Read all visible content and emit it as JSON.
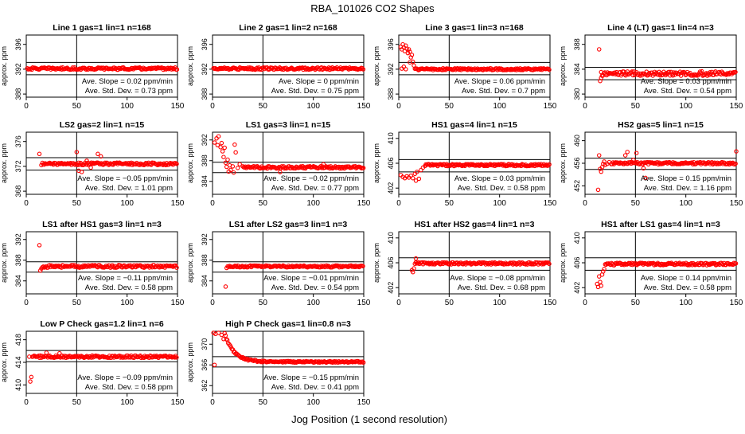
{
  "figure": {
    "title": "RBA_101026  CO2 Shapes",
    "xlabel": "Jog Position (1 second resolution)"
  },
  "chart_data": [
    {
      "type": "scatter",
      "title": "Line 1 gas=1 lin=1 n=168",
      "ylabel": "approx. ppm",
      "xlim": [
        0,
        150
      ],
      "ylim": [
        387.5,
        397.5
      ],
      "xticks": [
        0,
        50,
        100,
        150
      ],
      "yticks": [
        388,
        392,
        396
      ],
      "vline": 50,
      "hlines": [
        393.1,
        391.1
      ],
      "baseline": 392.1,
      "noise": 0.18,
      "x_start": 1,
      "early": [],
      "outliers": [],
      "series": [
        {
          "color": "#ff0000"
        }
      ],
      "annotation": {
        "slope_label": "Ave. Slope =",
        "slope_value": "0.02",
        "slope_unit": "ppm/min",
        "std_label": "Ave. Std. Dev. =",
        "std_value": "0.73",
        "std_unit": "ppm"
      }
    },
    {
      "type": "scatter",
      "title": "Line 2 gas=1 lin=2 n=168",
      "ylabel": "approx. ppm",
      "xlim": [
        0,
        150
      ],
      "ylim": [
        387.5,
        397.5
      ],
      "xticks": [
        0,
        50,
        100,
        150
      ],
      "yticks": [
        388,
        392,
        396
      ],
      "vline": 50,
      "hlines": [
        393.1,
        391.1
      ],
      "baseline": 392.1,
      "noise": 0.18,
      "x_start": 1,
      "early": [],
      "outliers": [],
      "series": [
        {
          "color": "#ff0000"
        }
      ],
      "annotation": {
        "slope_label": "Ave. Slope =",
        "slope_value": "0",
        "slope_unit": "ppm/min",
        "std_label": "Ave. Std. Dev. =",
        "std_value": "0.75",
        "std_unit": "ppm"
      }
    },
    {
      "type": "scatter",
      "title": "Line 3 gas=1 lin=3 n=168",
      "ylabel": "approx. ppm",
      "xlim": [
        0,
        150
      ],
      "ylim": [
        387.5,
        397.5
      ],
      "xticks": [
        0,
        50,
        100,
        150
      ],
      "yticks": [
        388,
        392,
        396
      ],
      "vline": 50,
      "hlines": [
        393.1,
        391.1
      ],
      "baseline": 392.0,
      "noise": 0.15,
      "x_start": 16,
      "early": [
        [
          2,
          395.6
        ],
        [
          3,
          395.2
        ],
        [
          4,
          396.0
        ],
        [
          5,
          395.5
        ],
        [
          6,
          394.9
        ],
        [
          7,
          395.8
        ],
        [
          8,
          395.3
        ],
        [
          9,
          394.6
        ],
        [
          10,
          395.2
        ],
        [
          11,
          394.8
        ],
        [
          12,
          393.9
        ],
        [
          13,
          394.3
        ],
        [
          14,
          393.2
        ],
        [
          15,
          392.6
        ],
        [
          3,
          392.1
        ],
        [
          5,
          392.4
        ],
        [
          7,
          392.0
        ],
        [
          11,
          393.1
        ]
      ],
      "outliers": [],
      "series": [
        {
          "color": "#ff0000"
        }
      ],
      "annotation": {
        "slope_label": "Ave. Slope =",
        "slope_value": "0.06",
        "slope_unit": "ppm/min",
        "std_label": "Ave. Std. Dev. =",
        "std_value": "0.7",
        "std_unit": "ppm"
      }
    },
    {
      "type": "scatter",
      "title": "Line 4 (LT) gas=1 lin=4 n=3",
      "ylabel": "approx. ppm",
      "xlim": [
        0,
        150
      ],
      "ylim": [
        379.5,
        389.5
      ],
      "xticks": [
        0,
        50,
        100,
        150
      ],
      "yticks": [
        380,
        384,
        388
      ],
      "vline": 50,
      "hlines": [
        384.3,
        382.3
      ],
      "baseline": 383.3,
      "noise": 0.35,
      "x_start": 16,
      "early": [
        [
          14,
          387.2
        ],
        [
          15,
          382.1
        ],
        [
          16,
          382.6
        ]
      ],
      "outliers": [],
      "series": [
        {
          "color": "#ff0000"
        }
      ],
      "annotation": {
        "slope_label": "Ave. Slope =",
        "slope_value": "0.03",
        "slope_unit": "ppm/min",
        "std_label": "Ave. Std. Dev. =",
        "std_value": "0.54",
        "std_unit": "ppm"
      }
    },
    {
      "type": "scatter",
      "title": "LS2 gas=2 lin=1 n=15",
      "ylabel": "approx. ppm",
      "xlim": [
        0,
        150
      ],
      "ylim": [
        367.5,
        377.5
      ],
      "xticks": [
        0,
        50,
        100,
        150
      ],
      "yticks": [
        368,
        372,
        376
      ],
      "vline": 50,
      "hlines": [
        373.4,
        371.4
      ],
      "baseline": 372.4,
      "noise": 0.2,
      "x_start": 16,
      "early": [
        [
          13,
          374.0
        ],
        [
          15,
          372.2
        ]
      ],
      "outliers": [
        [
          50,
          374.3
        ],
        [
          52,
          371.3
        ],
        [
          55,
          371.1
        ],
        [
          60,
          372.9
        ],
        [
          71,
          374.0
        ],
        [
          74,
          373.6
        ],
        [
          64,
          371.8
        ]
      ],
      "series": [
        {
          "color": "#ff0000"
        }
      ],
      "annotation": {
        "slope_label": "Ave. Slope =",
        "slope_value": "−0.05",
        "slope_unit": "ppm/min",
        "std_label": "Ave. Std. Dev. =",
        "std_value": "1.01",
        "std_unit": "ppm"
      }
    },
    {
      "type": "scatter",
      "title": "LS1 gas=3 lin=1 n=15",
      "ylabel": "approx. ppm",
      "xlim": [
        0,
        150
      ],
      "ylim": [
        381.5,
        393.5
      ],
      "xticks": [
        0,
        50,
        100,
        150
      ],
      "yticks": [
        384,
        388,
        392
      ],
      "vline": 50,
      "hlines": [
        387.7,
        385.7
      ],
      "baseline": 386.7,
      "noise": 0.22,
      "x_start": 30,
      "early": [
        [
          2,
          391.5
        ],
        [
          4,
          392.3
        ],
        [
          5,
          391.0
        ],
        [
          6,
          392.7
        ],
        [
          8,
          390.6
        ],
        [
          9,
          391.4
        ],
        [
          10,
          389.8
        ],
        [
          11,
          388.7
        ],
        [
          12,
          390.5
        ],
        [
          13,
          387.6
        ],
        [
          14,
          386.8
        ],
        [
          15,
          388.2
        ],
        [
          16,
          385.9
        ],
        [
          17,
          387.1
        ],
        [
          18,
          386.2
        ],
        [
          20,
          386.9
        ],
        [
          21,
          385.7
        ],
        [
          22,
          391.1
        ],
        [
          23,
          389.6
        ],
        [
          25,
          386.6
        ],
        [
          27,
          387.3
        ]
      ],
      "outliers": [
        [
          67,
          385.8
        ],
        [
          110,
          387.3
        ]
      ],
      "series": [
        {
          "color": "#ff0000"
        }
      ],
      "annotation": {
        "slope_label": "Ave. Slope =",
        "slope_value": "−0.02",
        "slope_unit": "ppm/min",
        "std_label": "Ave. Std. Dev. =",
        "std_value": "0.77",
        "std_unit": "ppm"
      }
    },
    {
      "type": "scatter",
      "title": "HS1 gas=4 lin=1 n=15",
      "ylabel": "approx. ppm",
      "xlim": [
        0,
        150
      ],
      "ylim": [
        401,
        411
      ],
      "xticks": [
        0,
        50,
        100,
        150
      ],
      "yticks": [
        402,
        406,
        410
      ],
      "vline": 50,
      "hlines": [
        406.6,
        404.6
      ],
      "baseline": 405.7,
      "noise": 0.16,
      "x_start": 26,
      "early": [
        [
          2,
          404.1
        ],
        [
          4,
          403.8
        ],
        [
          6,
          403.6
        ],
        [
          8,
          403.9
        ],
        [
          10,
          403.7
        ],
        [
          12,
          404.0
        ],
        [
          14,
          403.6
        ],
        [
          16,
          404.3
        ],
        [
          17,
          403.2
        ],
        [
          18,
          404.6
        ],
        [
          20,
          403.5
        ],
        [
          22,
          404.9
        ],
        [
          24,
          405.3
        ]
      ],
      "outliers": [],
      "series": [
        {
          "color": "#ff0000"
        }
      ],
      "annotation": {
        "slope_label": "Ave. Slope =",
        "slope_value": "0.03",
        "slope_unit": "ppm/min",
        "std_label": "Ave. Std. Dev. =",
        "std_value": "0.58",
        "std_unit": "ppm"
      }
    },
    {
      "type": "scatter",
      "title": "HS2 gas=5 lin=1 n=15",
      "ylabel": "approx. ppm",
      "xlim": [
        0,
        150
      ],
      "ylim": [
        450.5,
        461.5
      ],
      "xticks": [
        0,
        50,
        100,
        150
      ],
      "yticks": [
        452,
        456,
        460
      ],
      "vline": 50,
      "hlines": [
        456.9,
        454.9
      ],
      "baseline": 456.0,
      "noise": 0.2,
      "x_start": 26,
      "early": [
        [
          13,
          451.3
        ],
        [
          14,
          457.4
        ],
        [
          15,
          455.0
        ],
        [
          16,
          454.5
        ],
        [
          17,
          455.3
        ],
        [
          18,
          455.9
        ],
        [
          19,
          456.3
        ],
        [
          20,
          455.7
        ],
        [
          22,
          455.9
        ],
        [
          24,
          456.2
        ]
      ],
      "outliers": [
        [
          40,
          457.4
        ],
        [
          42,
          458.0
        ],
        [
          48,
          456.6
        ],
        [
          51,
          457.8
        ],
        [
          58,
          455.1
        ],
        [
          60,
          453.4
        ],
        [
          150,
          458.1
        ]
      ],
      "series": [
        {
          "color": "#ff0000"
        }
      ],
      "annotation": {
        "slope_label": "Ave. Slope =",
        "slope_value": "0.15",
        "slope_unit": "ppm/min",
        "std_label": "Ave. Std. Dev. =",
        "std_value": "1.16",
        "std_unit": "ppm"
      }
    },
    {
      "type": "scatter",
      "title": "LS1 after HS1 gas=3 lin=1 n=3",
      "ylabel": "approx. ppm",
      "xlim": [
        0,
        150
      ],
      "ylim": [
        381.5,
        393.5
      ],
      "xticks": [
        0,
        50,
        100,
        150
      ],
      "yticks": [
        384,
        388,
        392
      ],
      "vline": 50,
      "hlines": [
        387.7,
        385.7
      ],
      "baseline": 386.8,
      "noise": 0.25,
      "x_start": 16,
      "early": [
        [
          13,
          390.9
        ],
        [
          14,
          386.0
        ],
        [
          15,
          386.4
        ]
      ],
      "outliers": [],
      "series": [
        {
          "color": "#ff0000"
        }
      ],
      "annotation": {
        "slope_label": "Ave. Slope =",
        "slope_value": "−0.11",
        "slope_unit": "ppm/min",
        "std_label": "Ave. Std. Dev. =",
        "std_value": "0.58",
        "std_unit": "ppm"
      }
    },
    {
      "type": "scatter",
      "title": "LS1 after LS2 gas=3 lin=1 n=3",
      "ylabel": "approx. ppm",
      "xlim": [
        0,
        150
      ],
      "ylim": [
        381.5,
        393.5
      ],
      "xticks": [
        0,
        50,
        100,
        150
      ],
      "yticks": [
        384,
        388,
        392
      ],
      "vline": 50,
      "hlines": [
        387.7,
        385.7
      ],
      "baseline": 386.8,
      "noise": 0.18,
      "x_start": 16,
      "early": [
        [
          13,
          382.9
        ],
        [
          14,
          386.5
        ],
        [
          15,
          386.8
        ]
      ],
      "outliers": [],
      "series": [
        {
          "color": "#ff0000"
        }
      ],
      "annotation": {
        "slope_label": "Ave. Slope =",
        "slope_value": "−0.01",
        "slope_unit": "ppm/min",
        "std_label": "Ave. Std. Dev. =",
        "std_value": "0.54",
        "std_unit": "ppm"
      }
    },
    {
      "type": "scatter",
      "title": "HS1 after HS2 gas=4 lin=1 n=3",
      "ylabel": "approx. ppm",
      "xlim": [
        0,
        150
      ],
      "ylim": [
        401,
        411
      ],
      "xticks": [
        0,
        50,
        100,
        150
      ],
      "yticks": [
        402,
        406,
        410
      ],
      "vline": 50,
      "hlines": [
        406.8,
        404.8
      ],
      "baseline": 405.9,
      "noise": 0.17,
      "x_start": 16,
      "early": [
        [
          13,
          404.8
        ],
        [
          14,
          404.5
        ],
        [
          15,
          405.1
        ]
      ],
      "outliers": [
        [
          17,
          406.7
        ]
      ],
      "series": [
        {
          "color": "#ff0000"
        }
      ],
      "annotation": {
        "slope_label": "Ave. Slope =",
        "slope_value": "−0.08",
        "slope_unit": "ppm/min",
        "std_label": "Ave. Std. Dev. =",
        "std_value": "0.68",
        "std_unit": "ppm"
      }
    },
    {
      "type": "scatter",
      "title": "HS1 after LS1 gas=4 lin=1 n=3",
      "ylabel": "approx. ppm",
      "xlim": [
        0,
        150
      ],
      "ylim": [
        401,
        411
      ],
      "xticks": [
        0,
        50,
        100,
        150
      ],
      "yticks": [
        402,
        406,
        410
      ],
      "vline": 50,
      "hlines": [
        406.8,
        404.8
      ],
      "baseline": 405.8,
      "noise": 0.2,
      "x_start": 20,
      "early": [
        [
          12,
          402.6
        ],
        [
          13,
          402.1
        ],
        [
          14,
          403.8
        ],
        [
          15,
          402.9
        ],
        [
          16,
          402.3
        ],
        [
          17,
          404.1
        ],
        [
          18,
          404.6
        ],
        [
          19,
          405.0
        ]
      ],
      "outliers": [],
      "series": [
        {
          "color": "#ff0000"
        }
      ],
      "annotation": {
        "slope_label": "Ave. Slope =",
        "slope_value": "0.14",
        "slope_unit": "ppm/min",
        "std_label": "Ave. Std. Dev. =",
        "std_value": "0.58",
        "std_unit": "ppm"
      }
    },
    {
      "type": "scatter",
      "title": "Low P Check gas=1.2 lin=1 n=6",
      "ylabel": "approx. ppm",
      "xlim": [
        0,
        150
      ],
      "ylim": [
        408.5,
        419.5
      ],
      "xticks": [
        0,
        50,
        100,
        150
      ],
      "yticks": [
        410,
        414,
        418
      ],
      "vline": 50,
      "hlines": [
        416.1,
        414.1
      ],
      "baseline": 415.0,
      "noise": 0.2,
      "x_start": 6,
      "early": [
        [
          3,
          415.0
        ],
        [
          4,
          410.6
        ],
        [
          5,
          411.4
        ]
      ],
      "outliers": [
        [
          20,
          415.7
        ],
        [
          33,
          415.6
        ]
      ],
      "series": [
        {
          "color": "#ff0000"
        }
      ],
      "annotation": {
        "slope_label": "Ave. Slope =",
        "slope_value": "−0.09",
        "slope_unit": "ppm/min",
        "std_label": "Ave. Std. Dev. =",
        "std_value": "0.58",
        "std_unit": "ppm"
      }
    },
    {
      "type": "scatter",
      "title": "High P Check gas=1 lin=0.8 n=3",
      "ylabel": "approx. ppm",
      "xlim": [
        0,
        150
      ],
      "ylim": [
        360.5,
        372.5
      ],
      "xticks": [
        0,
        50,
        100,
        150
      ],
      "yticks": [
        362,
        366,
        370
      ],
      "vline": 50,
      "hlines": [
        367.6,
        365.6
      ],
      "baseline": 366.6,
      "noise": 0.15,
      "decay": {
        "amp": 5.5,
        "start": 12,
        "tau": 9
      },
      "x_start": 12,
      "early": [
        [
          1,
          372.3
        ],
        [
          3,
          372.0
        ],
        [
          2,
          366.0
        ],
        [
          6,
          372.2
        ],
        [
          9,
          371.8
        ],
        [
          11,
          371.0
        ]
      ],
      "outliers": [],
      "series": [
        {
          "color": "#ff0000"
        }
      ],
      "annotation": {
        "slope_label": "Ave. Slope =",
        "slope_value": "−0.15",
        "slope_unit": "ppm/min",
        "std_label": "Ave. Std. Dev. =",
        "std_value": "0.41",
        "std_unit": "ppm"
      }
    }
  ]
}
